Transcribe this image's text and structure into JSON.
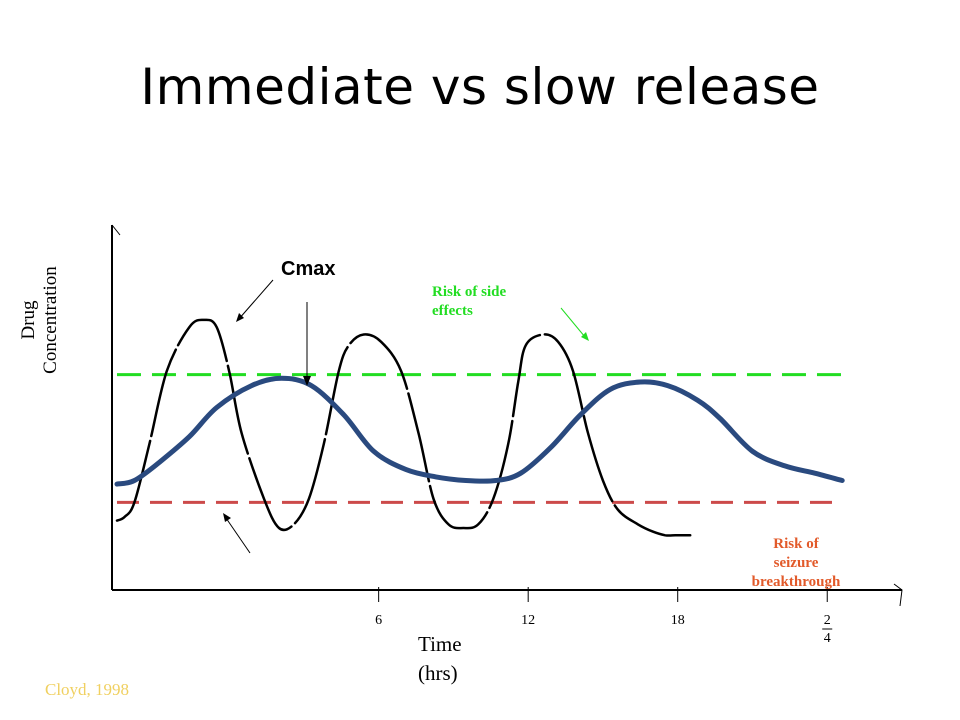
{
  "slide": {
    "title": "Immediate vs slow release",
    "citation": "Cloyd, 1998"
  },
  "annotations": {
    "cmax": "Cmax",
    "side_effects": [
      "Risk of  side",
      "effects"
    ],
    "seizure": [
      "Risk of",
      "seizure",
      "breakthrough"
    ]
  },
  "colors": {
    "immediate": "#000000",
    "slow": "#2a4a7f",
    "side_effect_threshold": "#22dd22",
    "seizure_threshold": "#cc4a4a",
    "citation": "#f0d060"
  },
  "chart_data": {
    "type": "line",
    "title": "",
    "xlabel": [
      "Time",
      "(hrs)"
    ],
    "ylabel": [
      "Drug",
      "Concentration"
    ],
    "xlim": [
      -4.7,
      27
    ],
    "ylim": [
      0,
      1
    ],
    "xticks": [
      {
        "value": 6,
        "label": "6"
      },
      {
        "value": 12,
        "label": "12"
      },
      {
        "value": 18,
        "label": "18"
      },
      {
        "value": 24,
        "label": "2 4"
      }
    ],
    "grid": false,
    "thresholds": [
      {
        "label": "Risk of side effects",
        "value": 0.59,
        "color": "#22dd22"
      },
      {
        "label": "Risk of seizure breakthrough",
        "value": 0.24,
        "color": "#cc4a4a"
      }
    ],
    "series": [
      {
        "style": "immediate",
        "x": [
          -4.5,
          -4.2,
          -3.8,
          -3.2,
          -2.5,
          -1.6,
          -1.0,
          -0.5,
          0.0,
          0.5,
          1.4,
          2.0,
          2.6,
          3.2,
          3.8,
          4.4,
          4.8,
          5.4,
          6.1,
          6.9,
          7.6,
          8.2,
          8.8,
          9.4,
          10.0,
          10.6,
          11.2,
          11.6,
          11.9,
          12.6,
          13.2,
          13.8,
          14.4,
          15.0,
          15.6,
          16.4,
          17.0,
          17.5,
          17.9,
          18.2,
          18.5
        ],
        "y": [
          0.19,
          0.2,
          0.24,
          0.4,
          0.6,
          0.72,
          0.74,
          0.72,
          0.6,
          0.43,
          0.25,
          0.17,
          0.18,
          0.25,
          0.4,
          0.6,
          0.67,
          0.7,
          0.68,
          0.6,
          0.43,
          0.25,
          0.18,
          0.17,
          0.18,
          0.25,
          0.4,
          0.57,
          0.67,
          0.7,
          0.68,
          0.6,
          0.43,
          0.3,
          0.22,
          0.18,
          0.16,
          0.15,
          0.15,
          0.15,
          0.15
        ]
      },
      {
        "style": "slow",
        "x": [
          -4.5,
          -3.8,
          -2.8,
          -1.6,
          -0.5,
          0.9,
          2.1,
          3.3,
          4.6,
          5.8,
          7.1,
          8.3,
          9.5,
          10.7,
          11.7,
          12.9,
          14.1,
          15.3,
          16.5,
          17.6,
          18.8,
          19.7,
          21.0,
          22.3,
          23.5,
          24.6
        ],
        "y": [
          0.29,
          0.3,
          0.35,
          0.42,
          0.5,
          0.56,
          0.58,
          0.56,
          0.48,
          0.38,
          0.33,
          0.31,
          0.3,
          0.3,
          0.32,
          0.39,
          0.48,
          0.55,
          0.57,
          0.56,
          0.52,
          0.47,
          0.38,
          0.34,
          0.32,
          0.3
        ]
      }
    ]
  }
}
